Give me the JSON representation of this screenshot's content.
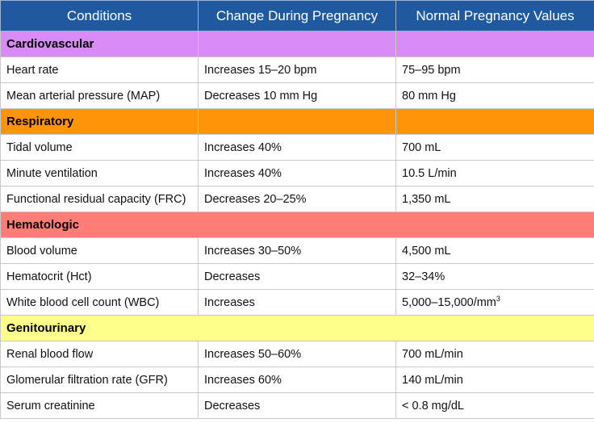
{
  "header": {
    "col1": "Conditions",
    "col2": "Change During Pregnancy",
    "col3": "Normal Pregnancy Values"
  },
  "sections": [
    {
      "title": "Cardiovascular",
      "color": "#d88bf5",
      "rows": [
        {
          "condition": "Heart rate",
          "change": "Increases 15–20 bpm",
          "value": "75–95 bpm"
        },
        {
          "condition": "Mean arterial pressure (MAP)",
          "change": "Decreases 10 mm Hg",
          "value": "80 mm Hg"
        }
      ]
    },
    {
      "title": "Respiratory",
      "color": "#ff9409",
      "rows": [
        {
          "condition": "Tidal volume",
          "change": "Increases 40%",
          "value": "700 mL"
        },
        {
          "condition": "Minute ventilation",
          "change": "Increases 40%",
          "value": "10.5 L/min"
        },
        {
          "condition": "Functional residual capacity (FRC)",
          "change": "Decreases 20–25%",
          "value": "1,350 mL"
        }
      ]
    },
    {
      "title": "Hematologic",
      "color": "#ff7d76",
      "rows": [
        {
          "condition": "Blood volume",
          "change": "Increases 30–50%",
          "value": "4,500 mL"
        },
        {
          "condition": "Hematocrit (Hct)",
          "change": "Decreases",
          "value": "32–34%"
        },
        {
          "condition": "White blood cell count (WBC)",
          "change": "Increases",
          "value": "5,000–15,000/mm",
          "value_sup": "3"
        }
      ]
    },
    {
      "title": "Genitourinary",
      "color": "#fdfd8a",
      "rows": [
        {
          "condition": "Renal blood flow",
          "change": "Increases 50–60%",
          "value": "700 mL/min"
        },
        {
          "condition": "Glomerular filtration rate (GFR)",
          "change": "Increases 60%",
          "value": "140 mL/min"
        },
        {
          "condition": "Serum creatinine",
          "change": "Decreases",
          "value": "< 0.8 mg/dL"
        }
      ]
    }
  ]
}
